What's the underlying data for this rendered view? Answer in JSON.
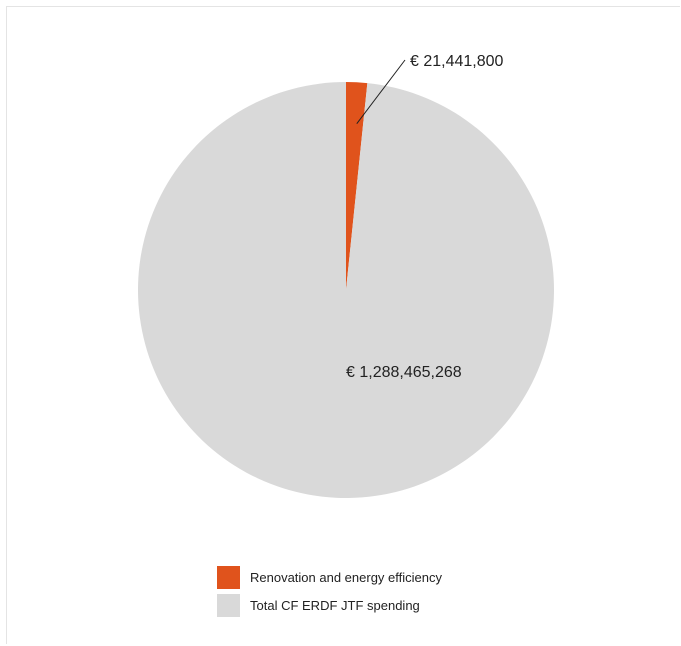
{
  "chart_data": {
    "type": "pie",
    "title": "",
    "series": [
      {
        "name": "",
        "values": [
          21441800,
          1288465268
        ],
        "labels": [
          "€ 21,441,800",
          "€ 1,288,465,268"
        ]
      }
    ],
    "categories": [
      "Renovation and energy efficiency",
      "Total CF ERDF JTF spending"
    ],
    "colors": [
      "#e0531c",
      "#d9d9d9"
    ],
    "legend_placement": "bottom"
  }
}
